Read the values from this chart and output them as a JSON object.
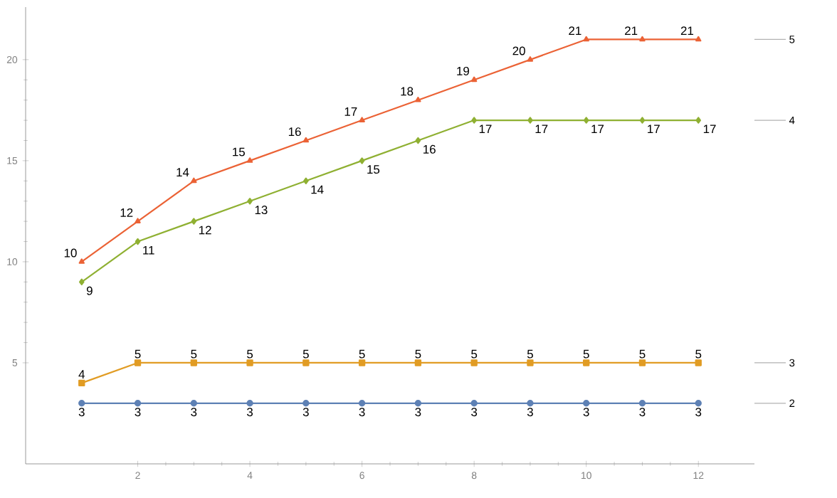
{
  "chart_data": {
    "type": "line",
    "x": [
      1,
      2,
      3,
      4,
      5,
      6,
      7,
      8,
      9,
      10,
      11,
      12
    ],
    "series": [
      {
        "name": "2",
        "color": "#5e81b5",
        "marker": "circle",
        "values": [
          3,
          3,
          3,
          3,
          3,
          3,
          3,
          3,
          3,
          3,
          3,
          3
        ]
      },
      {
        "name": "3",
        "color": "#e19c24",
        "marker": "square",
        "values": [
          4,
          5,
          5,
          5,
          5,
          5,
          5,
          5,
          5,
          5,
          5,
          5
        ]
      },
      {
        "name": "4",
        "color": "#8fb032",
        "marker": "diamond",
        "values": [
          9,
          11,
          12,
          13,
          14,
          15,
          16,
          17,
          17,
          17,
          17,
          17
        ]
      },
      {
        "name": "5",
        "color": "#eb6235",
        "marker": "triangle",
        "values": [
          10,
          12,
          14,
          15,
          16,
          17,
          18,
          19,
          20,
          21,
          21,
          21
        ]
      }
    ],
    "xlim": [
      0,
      13
    ],
    "ylim": [
      0,
      22.6
    ],
    "xticks": [
      2,
      4,
      6,
      8,
      10,
      12
    ],
    "yticks": [
      5,
      10,
      15,
      20
    ],
    "data_labels": true,
    "legend": "right",
    "grid": false,
    "line_style": "solid"
  }
}
